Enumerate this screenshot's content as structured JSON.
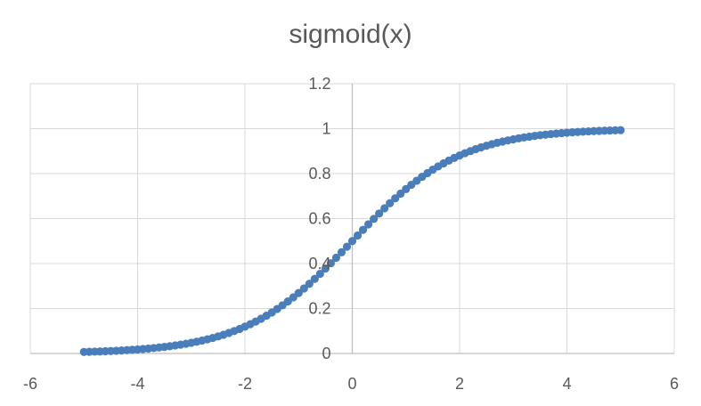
{
  "chart_data": {
    "type": "scatter",
    "title": "sigmoid(x)",
    "xlabel": "",
    "ylabel": "",
    "xlim": [
      -6,
      6
    ],
    "ylim": [
      0,
      1.2
    ],
    "xticks": [
      "-6",
      "-4",
      "-2",
      "0",
      "2",
      "4",
      "6"
    ],
    "yticks": [
      "0",
      "0.2",
      "0.4",
      "0.6",
      "0.8",
      "1",
      "1.2"
    ],
    "grid": true,
    "legend": "none",
    "series": [
      {
        "color": "#4a7ebb",
        "x": [
          -5.0,
          -4.9,
          -4.8,
          -4.7,
          -4.6,
          -4.5,
          -4.4,
          -4.3,
          -4.2,
          -4.1,
          -4.0,
          -3.9,
          -3.8,
          -3.7,
          -3.6,
          -3.5,
          -3.4,
          -3.3,
          -3.2,
          -3.1,
          -3.0,
          -2.9,
          -2.8,
          -2.7,
          -2.6,
          -2.5,
          -2.4,
          -2.3,
          -2.2,
          -2.1,
          -2.0,
          -1.9,
          -1.8,
          -1.7,
          -1.6,
          -1.5,
          -1.4,
          -1.3,
          -1.2,
          -1.1,
          -1.0,
          -0.9,
          -0.8,
          -0.7,
          -0.6,
          -0.5,
          -0.4,
          -0.3,
          -0.2,
          -0.1,
          0.0,
          0.1,
          0.2,
          0.3,
          0.4,
          0.5,
          0.6,
          0.7,
          0.8,
          0.9,
          1.0,
          1.1,
          1.2,
          1.3,
          1.4,
          1.5,
          1.6,
          1.7,
          1.8,
          1.9,
          2.0,
          2.1,
          2.2,
          2.3,
          2.4,
          2.5,
          2.6,
          2.7,
          2.8,
          2.9,
          3.0,
          3.1,
          3.2,
          3.3,
          3.4,
          3.5,
          3.6,
          3.7,
          3.8,
          3.9,
          4.0,
          4.1,
          4.2,
          4.3,
          4.4,
          4.5,
          4.6,
          4.7,
          4.8,
          4.9,
          5.0
        ],
        "y": [
          0.0067,
          0.0074,
          0.0082,
          0.009,
          0.01,
          0.011,
          0.0121,
          0.0134,
          0.0148,
          0.0163,
          0.018,
          0.0198,
          0.0219,
          0.0241,
          0.0266,
          0.0293,
          0.0323,
          0.0356,
          0.0392,
          0.0431,
          0.0474,
          0.0522,
          0.0573,
          0.063,
          0.0691,
          0.0759,
          0.0832,
          0.0911,
          0.0998,
          0.1091,
          0.1192,
          0.1301,
          0.1419,
          0.1545,
          0.168,
          0.1824,
          0.1978,
          0.2142,
          0.2315,
          0.2497,
          0.2689,
          0.2891,
          0.31,
          0.3318,
          0.3543,
          0.3775,
          0.4013,
          0.4256,
          0.4502,
          0.475,
          0.5,
          0.525,
          0.5498,
          0.5744,
          0.5987,
          0.6225,
          0.6457,
          0.6682,
          0.69,
          0.7109,
          0.7311,
          0.7503,
          0.7685,
          0.7858,
          0.8022,
          0.8176,
          0.832,
          0.8455,
          0.8581,
          0.8699,
          0.8808,
          0.8909,
          0.9002,
          0.9089,
          0.9168,
          0.9241,
          0.9309,
          0.937,
          0.9427,
          0.9478,
          0.9526,
          0.9569,
          0.9608,
          0.9644,
          0.9677,
          0.9707,
          0.9734,
          0.9759,
          0.9781,
          0.9802,
          0.982,
          0.9837,
          0.9852,
          0.9866,
          0.9879,
          0.989,
          0.99,
          0.991,
          0.9918,
          0.9926,
          0.9933
        ]
      }
    ]
  }
}
